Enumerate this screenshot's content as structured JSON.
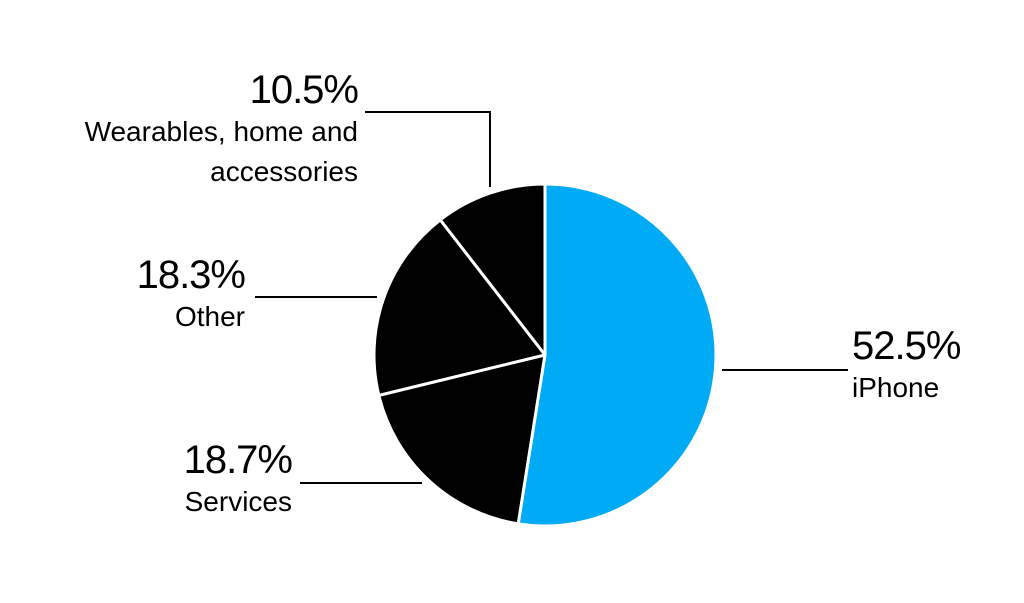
{
  "chart_data": {
    "type": "pie",
    "categories": [
      "iPhone",
      "Services",
      "Other",
      "Wearables, home and accessories"
    ],
    "values": [
      52.5,
      18.7,
      18.3,
      10.5
    ],
    "value_labels": [
      "52.5%",
      "18.7%",
      "18.3%",
      "10.5%"
    ],
    "colors": [
      "#00aaf5",
      "#000000",
      "#000000",
      "#000000"
    ]
  }
}
